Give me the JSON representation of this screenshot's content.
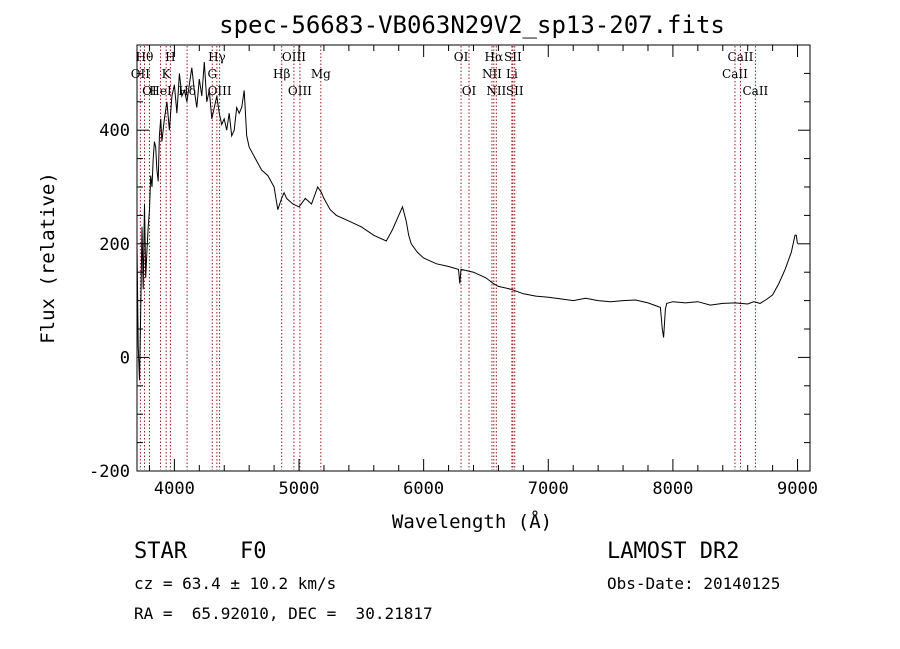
{
  "chart_data": {
    "type": "line",
    "title": "spec-56683-VB063N29V2_sp13-207.fits",
    "xlabel": "Wavelength (Å)",
    "ylabel": "Flux (relative)",
    "xlim": [
      3700,
      9100
    ],
    "ylim": [
      -200,
      550
    ],
    "xticks": [
      4000,
      5000,
      6000,
      7000,
      8000,
      9000
    ],
    "yticks": [
      -200,
      0,
      200,
      400
    ],
    "grid": false,
    "series": [
      {
        "name": "spectrum",
        "x": [
          3700,
          3710,
          3720,
          3730,
          3740,
          3750,
          3760,
          3770,
          3780,
          3790,
          3800,
          3810,
          3820,
          3830,
          3840,
          3850,
          3860,
          3870,
          3880,
          3890,
          3900,
          3920,
          3940,
          3960,
          3980,
          4000,
          4020,
          4040,
          4060,
          4080,
          4100,
          4120,
          4140,
          4160,
          4180,
          4200,
          4220,
          4240,
          4260,
          4280,
          4300,
          4320,
          4340,
          4360,
          4380,
          4400,
          4420,
          4440,
          4460,
          4480,
          4500,
          4520,
          4540,
          4560,
          4580,
          4600,
          4650,
          4700,
          4750,
          4800,
          4830,
          4860,
          4880,
          4900,
          4950,
          5000,
          5050,
          5100,
          5150,
          5180,
          5200,
          5250,
          5300,
          5400,
          5500,
          5600,
          5700,
          5750,
          5800,
          5830,
          5860,
          5880,
          5900,
          5950,
          6000,
          6100,
          6200,
          6280,
          6290,
          6300,
          6400,
          6500,
          6560,
          6600,
          6700,
          6800,
          6900,
          7000,
          7100,
          7200,
          7300,
          7400,
          7500,
          7600,
          7700,
          7800,
          7850,
          7900,
          7915,
          7925,
          7940,
          7950,
          8000,
          8100,
          8200,
          8300,
          8400,
          8500,
          8600,
          8650,
          8700,
          8750,
          8800,
          8850,
          8900,
          8950,
          8980,
          8990,
          9000
        ],
        "y": [
          200,
          20,
          -40,
          80,
          230,
          120,
          270,
          140,
          190,
          230,
          260,
          320,
          300,
          350,
          380,
          370,
          330,
          310,
          390,
          420,
          380,
          420,
          450,
          400,
          460,
          480,
          430,
          500,
          460,
          470,
          450,
          480,
          510,
          470,
          440,
          490,
          460,
          520,
          450,
          470,
          420,
          440,
          460,
          430,
          410,
          420,
          400,
          430,
          390,
          400,
          440,
          430,
          440,
          470,
          390,
          370,
          350,
          330,
          320,
          300,
          260,
          280,
          290,
          280,
          270,
          265,
          280,
          270,
          300,
          290,
          280,
          260,
          250,
          240,
          230,
          215,
          205,
          225,
          250,
          265,
          240,
          215,
          200,
          185,
          175,
          165,
          160,
          155,
          130,
          155,
          150,
          140,
          130,
          125,
          120,
          112,
          108,
          106,
          103,
          100,
          104,
          100,
          98,
          100,
          101,
          96,
          92,
          88,
          50,
          35,
          85,
          95,
          98,
          96,
          98,
          92,
          95,
          96,
          94,
          98,
          95,
          102,
          110,
          130,
          155,
          185,
          215,
          215,
          200
        ]
      }
    ],
    "spectral_lines": [
      {
        "wavelength": 3727,
        "label": "OII",
        "row": 2
      },
      {
        "wavelength": 3760,
        "label": "Hθ",
        "row": 1
      },
      {
        "wavelength": 3800,
        "label": "OI",
        "row": 3
      },
      {
        "wavelength": 3889,
        "label": "HeI",
        "row": 3
      },
      {
        "wavelength": 3934,
        "label": "K",
        "row": 2
      },
      {
        "wavelength": 3968,
        "label": "H",
        "row": 1
      },
      {
        "wavelength": 4102,
        "label": "Hδ",
        "row": 3
      },
      {
        "wavelength": 4304,
        "label": "G",
        "row": 2
      },
      {
        "wavelength": 4341,
        "label": "Hγ",
        "row": 1
      },
      {
        "wavelength": 4363,
        "label": "OIII",
        "row": 3
      },
      {
        "wavelength": 4861,
        "label": "Hβ",
        "row": 2
      },
      {
        "wavelength": 4959,
        "label": "OIII",
        "row": 1
      },
      {
        "wavelength": 5007,
        "label": "OIII",
        "row": 3
      },
      {
        "wavelength": 5175,
        "label": "Mg",
        "row": 2
      },
      {
        "wavelength": 6300,
        "label": "OI",
        "row": 1
      },
      {
        "wavelength": 6364,
        "label": "OI",
        "row": 3
      },
      {
        "wavelength": 6548,
        "label": "NII",
        "row": 2
      },
      {
        "wavelength": 6563,
        "label": "Hα",
        "row": 1
      },
      {
        "wavelength": 6583,
        "label": "NII",
        "row": 3
      },
      {
        "wavelength": 6708,
        "label": "Li",
        "row": 2
      },
      {
        "wavelength": 6716,
        "label": "SII",
        "row": 1
      },
      {
        "wavelength": 6731,
        "label": "SII",
        "row": 3
      },
      {
        "wavelength": 8498,
        "label": "CaII",
        "row": 2
      },
      {
        "wavelength": 8542,
        "label": "CaII",
        "row": 1
      },
      {
        "wavelength": 8662,
        "label": "CaII",
        "row": 3
      }
    ]
  },
  "info": {
    "class": "STAR",
    "subclass": "F0",
    "survey": "LAMOST DR2",
    "redshift_text": "cz = 63.4 ± 10.2 km/s",
    "obs_date_text": "Obs-Date: 20140125",
    "coords_text": "RA =  65.92010, DEC =  30.21817"
  }
}
